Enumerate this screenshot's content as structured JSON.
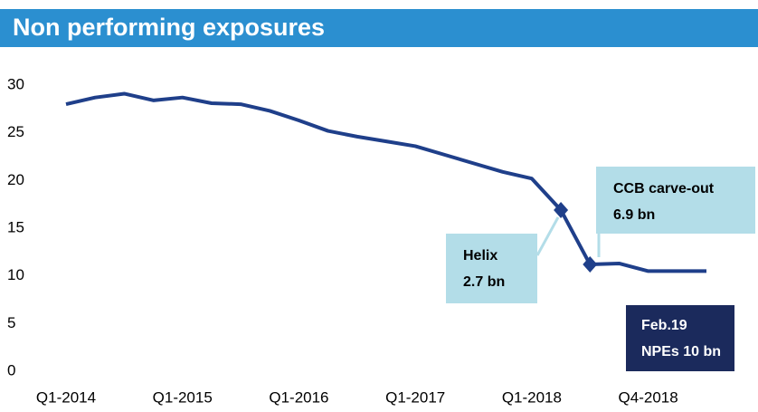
{
  "chart_data": {
    "type": "line",
    "title": "Non performing exposures",
    "categories": [
      "Q1-2014",
      null,
      null,
      null,
      "Q1-2015",
      null,
      null,
      null,
      "Q1-2016",
      null,
      null,
      null,
      "Q1-2017",
      null,
      null,
      null,
      "Q1-2018",
      null,
      null,
      null,
      "Q4-2018",
      null,
      null
    ],
    "series": [
      {
        "name": "NPEs",
        "color": "#1f3f8a",
        "values": [
          28.0,
          28.7,
          29.1,
          28.4,
          28.7,
          28.1,
          28.0,
          27.3,
          26.3,
          25.2,
          24.6,
          24.1,
          23.6,
          22.7,
          21.8,
          20.9,
          20.2,
          16.9,
          11.2,
          11.3,
          10.5,
          10.5,
          10.5
        ]
      }
    ],
    "ylim": [
      0,
      30
    ],
    "yticks": [
      0,
      5,
      10,
      15,
      20,
      25,
      30
    ],
    "grid": false,
    "markers": [
      17,
      18
    ],
    "annotations": [
      [
        "Helix",
        "2.7 bn"
      ],
      [
        "CCB carve-out",
        "6.9 bn"
      ],
      [
        "Feb.19",
        "NPEs 10 bn"
      ]
    ]
  }
}
